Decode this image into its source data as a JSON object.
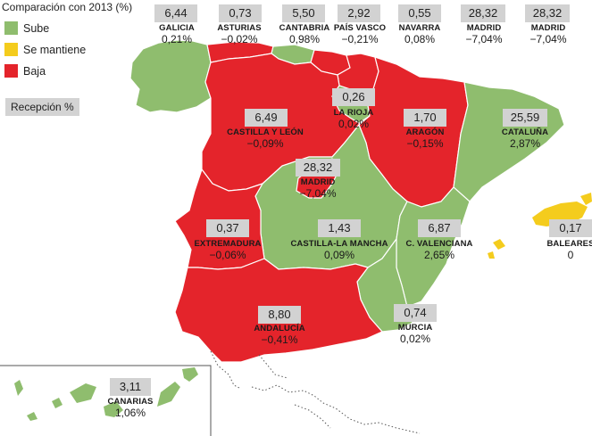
{
  "legend": {
    "title": "Comparación con 2013 (%)",
    "items": [
      {
        "label": "Sube",
        "color": "#8fbd6e"
      },
      {
        "label": "Se mantiene",
        "color": "#f4cc1d"
      },
      {
        "label": "Baja",
        "color": "#e4242b"
      }
    ],
    "reception_key": "Recepción %"
  },
  "colors": {
    "up": "#8fbd6e",
    "same": "#f4cc1d",
    "down": "#e4242b",
    "badge": "#d2d2d2"
  },
  "regions": [
    {
      "name": "GALICIA",
      "reception": "6,44",
      "change": "0,21%",
      "trend": "up"
    },
    {
      "name": "ASTURIAS",
      "reception": "0,73",
      "change": "−0,02%",
      "trend": "down"
    },
    {
      "name": "CANTABRIA",
      "reception": "5,50",
      "change": "0,98%",
      "trend": "up"
    },
    {
      "name": "PAÍS VASCO",
      "reception": "2,92",
      "change": "−0,21%",
      "trend": "down"
    },
    {
      "name": "NAVARRA",
      "reception": "0,55",
      "change": "0,08%",
      "trend": "up"
    },
    {
      "name": "MADRID",
      "reception": "28,32",
      "change": "−7,04%",
      "trend": "down"
    },
    {
      "name": "MADRID",
      "reception": "28,32",
      "change": "−7,04%",
      "trend": "down"
    },
    {
      "name": "LA RIOJA",
      "reception": "0,26",
      "change": "0,02%",
      "trend": "up"
    },
    {
      "name": "CASTILLA Y LEÓN",
      "reception": "6,49",
      "change": "−0,09%",
      "trend": "down"
    },
    {
      "name": "ARAGÓN",
      "reception": "1,70",
      "change": "−0,15%",
      "trend": "down"
    },
    {
      "name": "CATALUÑA",
      "reception": "25,59",
      "change": "2,87%",
      "trend": "up"
    },
    {
      "name": "MADRID",
      "reception": "28,32",
      "change": "−7,04%",
      "trend": "down"
    },
    {
      "name": "EXTREMADURA",
      "reception": "0,37",
      "change": "−0,06%",
      "trend": "down"
    },
    {
      "name": "CASTILLA-LA MANCHA",
      "reception": "1,43",
      "change": "0,09%",
      "trend": "up"
    },
    {
      "name": "C. VALENCIANA",
      "reception": "6,87",
      "change": "2,65%",
      "trend": "up"
    },
    {
      "name": "BALEARES",
      "reception": "0,17",
      "change": "0",
      "trend": "same"
    },
    {
      "name": "ANDALUCÍA",
      "reception": "8,80",
      "change": "−0,41%",
      "trend": "down"
    },
    {
      "name": "MURCIA",
      "reception": "0,74",
      "change": "0,02%",
      "trend": "up"
    },
    {
      "name": "CANARIAS",
      "reception": "3,11",
      "change": "1,06%",
      "trend": "up"
    }
  ]
}
